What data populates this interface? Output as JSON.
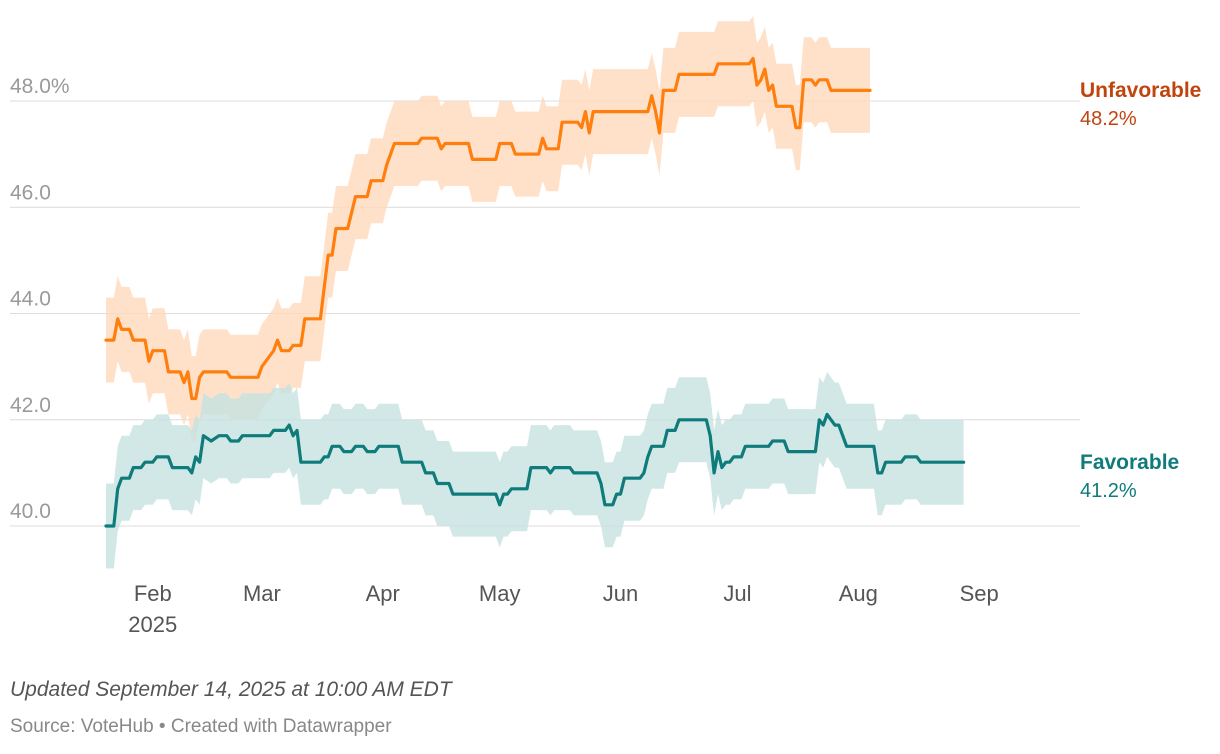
{
  "chart_data": {
    "type": "line",
    "ylim": [
      40,
      48
    ],
    "yticks": [
      {
        "value": 40,
        "label": "40.0"
      },
      {
        "value": 42,
        "label": "42.0"
      },
      {
        "value": 44,
        "label": "44.0"
      },
      {
        "value": 46,
        "label": "46.0"
      },
      {
        "value": 48,
        "label": "48.0%"
      }
    ],
    "xlim": [
      0,
      245
    ],
    "xticks": [
      {
        "day": 12,
        "label": "Feb",
        "sublabel": "2025"
      },
      {
        "day": 40,
        "label": "Mar"
      },
      {
        "day": 71,
        "label": "Apr"
      },
      {
        "day": 101,
        "label": "May"
      },
      {
        "day": 132,
        "label": "Jun"
      },
      {
        "day": 162,
        "label": "Jul"
      },
      {
        "day": 193,
        "label": "Aug"
      },
      {
        "day": 224,
        "label": "Sep"
      }
    ],
    "x_unit": "days since Jan 20, 2025",
    "series": [
      {
        "name": "Unfavorable",
        "last_label": "48.2%",
        "color": "#ff7f0e",
        "label_color": "#c1440e",
        "band_color": "#ffd9bd",
        "band_halfwidth": 0.8,
        "points": [
          [
            0,
            43.5
          ],
          [
            2,
            43.5
          ],
          [
            3,
            43.9
          ],
          [
            4,
            43.7
          ],
          [
            6,
            43.7
          ],
          [
            7,
            43.5
          ],
          [
            10,
            43.5
          ],
          [
            11,
            43.1
          ],
          [
            12,
            43.3
          ],
          [
            15,
            43.3
          ],
          [
            16,
            42.9
          ],
          [
            19,
            42.9
          ],
          [
            20,
            42.7
          ],
          [
            21,
            42.9
          ],
          [
            22,
            42.4
          ],
          [
            23,
            42.4
          ],
          [
            24,
            42.8
          ],
          [
            25,
            42.9
          ],
          [
            31,
            42.9
          ],
          [
            32,
            42.8
          ],
          [
            39,
            42.8
          ],
          [
            40,
            43.0
          ],
          [
            43,
            43.3
          ],
          [
            44,
            43.5
          ],
          [
            45,
            43.3
          ],
          [
            47,
            43.3
          ],
          [
            48,
            43.4
          ],
          [
            50,
            43.4
          ],
          [
            51,
            43.9
          ],
          [
            55,
            43.9
          ],
          [
            56,
            44.5
          ],
          [
            57,
            45.1
          ],
          [
            58,
            45.1
          ],
          [
            59,
            45.6
          ],
          [
            62,
            45.6
          ],
          [
            63,
            45.9
          ],
          [
            64,
            46.2
          ],
          [
            67,
            46.2
          ],
          [
            68,
            46.5
          ],
          [
            71,
            46.5
          ],
          [
            72,
            46.8
          ],
          [
            73,
            47.0
          ],
          [
            74,
            47.2
          ],
          [
            80,
            47.2
          ],
          [
            81,
            47.3
          ],
          [
            85,
            47.3
          ],
          [
            86,
            47.1
          ],
          [
            87,
            47.2
          ],
          [
            93,
            47.2
          ],
          [
            94,
            46.9
          ],
          [
            100,
            46.9
          ],
          [
            101,
            47.2
          ],
          [
            104,
            47.2
          ],
          [
            105,
            47.0
          ],
          [
            111,
            47.0
          ],
          [
            112,
            47.3
          ],
          [
            113,
            47.1
          ],
          [
            116,
            47.1
          ],
          [
            117,
            47.6
          ],
          [
            121,
            47.6
          ],
          [
            122,
            47.5
          ],
          [
            123,
            47.8
          ],
          [
            124,
            47.4
          ],
          [
            125,
            47.8
          ],
          [
            139,
            47.8
          ],
          [
            140,
            48.1
          ],
          [
            141,
            47.8
          ],
          [
            142,
            47.4
          ],
          [
            143,
            48.2
          ],
          [
            146,
            48.2
          ],
          [
            147,
            48.5
          ],
          [
            156,
            48.5
          ],
          [
            157,
            48.7
          ],
          [
            165,
            48.7
          ],
          [
            166,
            48.8
          ],
          [
            167,
            48.3
          ],
          [
            168,
            48.4
          ],
          [
            169,
            48.6
          ],
          [
            170,
            48.2
          ],
          [
            171,
            48.3
          ],
          [
            172,
            47.9
          ],
          [
            176,
            47.9
          ],
          [
            177,
            47.5
          ],
          [
            178,
            47.5
          ],
          [
            179,
            48.4
          ],
          [
            181,
            48.4
          ],
          [
            182,
            48.3
          ],
          [
            183,
            48.4
          ],
          [
            185,
            48.4
          ],
          [
            186,
            48.2
          ],
          [
            196,
            48.2
          ]
        ]
      },
      {
        "name": "Favorable",
        "last_label": "41.2%",
        "color": "#0f7b7b",
        "label_color": "#0f7b7b",
        "band_color": "#c6e2e1",
        "band_halfwidth": 0.8,
        "points": [
          [
            0,
            40.0
          ],
          [
            2,
            40.0
          ],
          [
            3,
            40.7
          ],
          [
            4,
            40.9
          ],
          [
            6,
            40.9
          ],
          [
            7,
            41.1
          ],
          [
            9,
            41.1
          ],
          [
            10,
            41.2
          ],
          [
            12,
            41.2
          ],
          [
            13,
            41.3
          ],
          [
            16,
            41.3
          ],
          [
            17,
            41.1
          ],
          [
            21,
            41.1
          ],
          [
            22,
            41.0
          ],
          [
            23,
            41.3
          ],
          [
            24,
            41.2
          ],
          [
            25,
            41.7
          ],
          [
            27,
            41.6
          ],
          [
            29,
            41.7
          ],
          [
            31,
            41.7
          ],
          [
            32,
            41.6
          ],
          [
            34,
            41.6
          ],
          [
            35,
            41.7
          ],
          [
            42,
            41.7
          ],
          [
            43,
            41.8
          ],
          [
            46,
            41.8
          ],
          [
            47,
            41.9
          ],
          [
            48,
            41.7
          ],
          [
            49,
            41.8
          ],
          [
            50,
            41.2
          ],
          [
            55,
            41.2
          ],
          [
            56,
            41.3
          ],
          [
            57,
            41.3
          ],
          [
            58,
            41.5
          ],
          [
            60,
            41.5
          ],
          [
            61,
            41.4
          ],
          [
            63,
            41.4
          ],
          [
            64,
            41.5
          ],
          [
            66,
            41.5
          ],
          [
            67,
            41.4
          ],
          [
            69,
            41.4
          ],
          [
            70,
            41.5
          ],
          [
            75,
            41.5
          ],
          [
            76,
            41.2
          ],
          [
            81,
            41.2
          ],
          [
            82,
            41.0
          ],
          [
            84,
            41.0
          ],
          [
            85,
            40.8
          ],
          [
            88,
            40.8
          ],
          [
            89,
            40.6
          ],
          [
            100,
            40.6
          ],
          [
            101,
            40.4
          ],
          [
            102,
            40.6
          ],
          [
            103,
            40.6
          ],
          [
            104,
            40.7
          ],
          [
            108,
            40.7
          ],
          [
            109,
            41.1
          ],
          [
            113,
            41.1
          ],
          [
            114,
            41.0
          ],
          [
            115,
            41.1
          ],
          [
            119,
            41.1
          ],
          [
            120,
            41.0
          ],
          [
            126,
            41.0
          ],
          [
            127,
            40.8
          ],
          [
            128,
            40.4
          ],
          [
            130,
            40.4
          ],
          [
            131,
            40.6
          ],
          [
            132,
            40.6
          ],
          [
            133,
            40.9
          ],
          [
            137,
            40.9
          ],
          [
            138,
            41.0
          ],
          [
            139,
            41.3
          ],
          [
            140,
            41.5
          ],
          [
            143,
            41.5
          ],
          [
            144,
            41.8
          ],
          [
            146,
            41.8
          ],
          [
            147,
            42.0
          ],
          [
            154,
            42.0
          ],
          [
            155,
            41.7
          ],
          [
            156,
            41.0
          ],
          [
            157,
            41.4
          ],
          [
            158,
            41.1
          ],
          [
            159,
            41.2
          ],
          [
            160,
            41.2
          ],
          [
            161,
            41.3
          ],
          [
            163,
            41.3
          ],
          [
            164,
            41.5
          ],
          [
            170,
            41.5
          ],
          [
            171,
            41.6
          ],
          [
            174,
            41.6
          ],
          [
            175,
            41.4
          ],
          [
            182,
            41.4
          ],
          [
            183,
            42.0
          ],
          [
            184,
            41.9
          ],
          [
            185,
            42.1
          ],
          [
            187,
            41.9
          ],
          [
            188,
            41.9
          ],
          [
            189,
            41.7
          ],
          [
            190,
            41.5
          ],
          [
            197,
            41.5
          ],
          [
            198,
            41.0
          ],
          [
            199,
            41.0
          ],
          [
            200,
            41.2
          ],
          [
            204,
            41.2
          ],
          [
            205,
            41.3
          ],
          [
            208,
            41.3
          ],
          [
            209,
            41.2
          ],
          [
            220,
            41.2
          ]
        ]
      }
    ]
  },
  "footer": {
    "updated": "Updated September 14, 2025 at 10:00 AM EDT",
    "source": "Source: VoteHub • Created with Datawrapper"
  }
}
